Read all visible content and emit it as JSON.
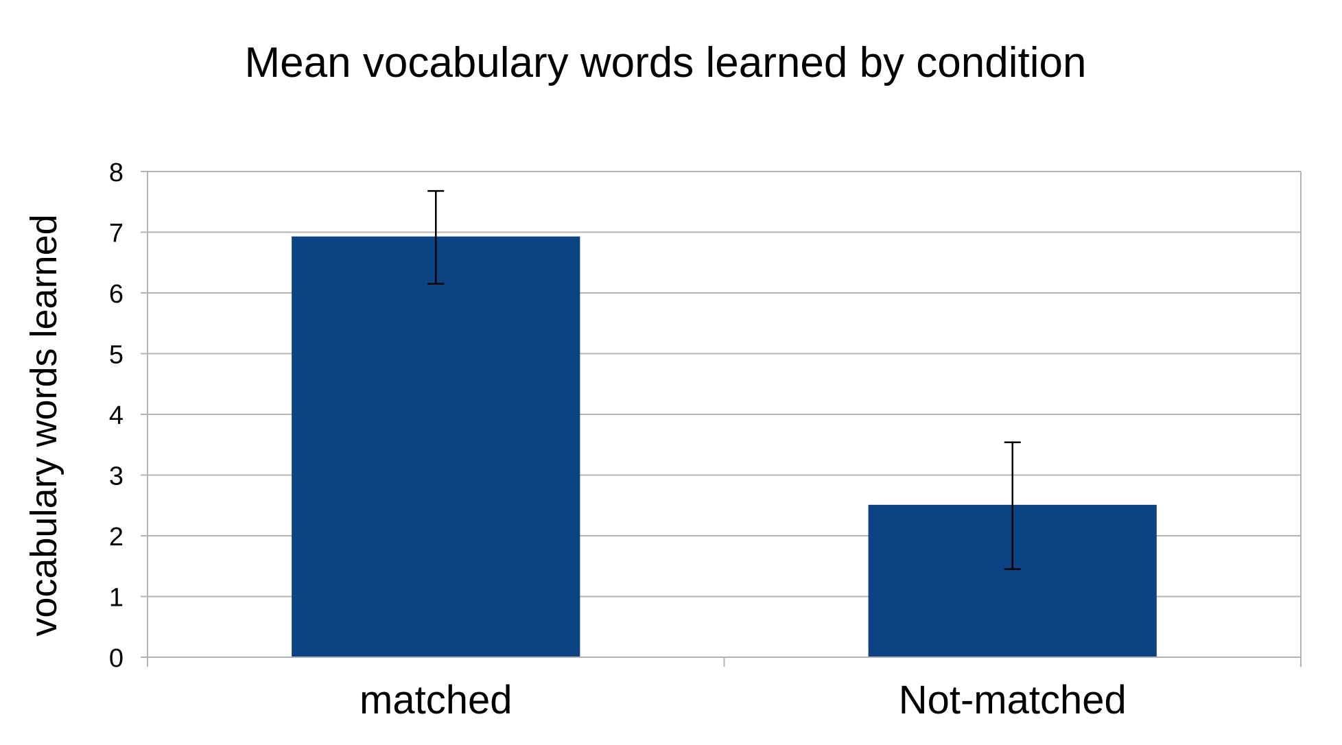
{
  "chart_data": {
    "type": "bar",
    "title": "Mean vocabulary words learned by condition",
    "ylabel": "vocabulary words learned",
    "xlabel": "",
    "categories": [
      "matched",
      "Not-matched"
    ],
    "values": [
      6.93,
      2.51
    ],
    "error_low": [
      6.15,
      1.45
    ],
    "error_high": [
      7.68,
      3.54
    ],
    "ylim": [
      0,
      8
    ],
    "yticks": [
      "0",
      "1",
      "2",
      "3",
      "4",
      "5",
      "6",
      "7",
      "8"
    ],
    "grid": true,
    "legend": "none",
    "bar_color": "#0c4383",
    "grid_color": "#b3b3b3"
  }
}
